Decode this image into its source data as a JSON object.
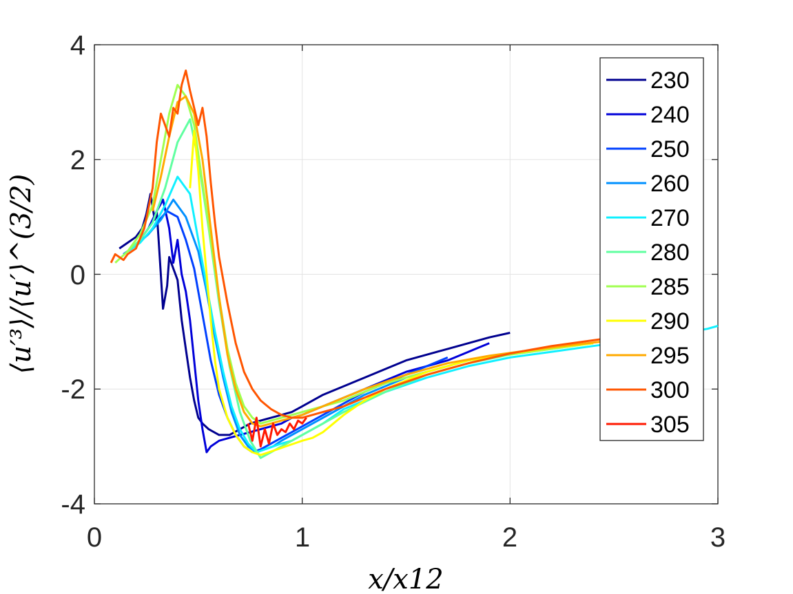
{
  "chart_data": {
    "type": "line",
    "title": "",
    "xlabel": "x/x12",
    "ylabel": "⟨u′³⟩/⟨u′⟩^(3/2)",
    "xlim": [
      0,
      3
    ],
    "ylim": [
      -4,
      4
    ],
    "grid": true,
    "legend_position": "top-right",
    "x_ticks": [
      "0",
      "1",
      "2",
      "3"
    ],
    "y_ticks": [
      "4",
      "2",
      "0",
      "-2",
      "-4"
    ],
    "series": [
      {
        "name": "230",
        "color": "#00008f",
        "x": [
          0.12,
          0.16,
          0.2,
          0.23,
          0.25,
          0.27,
          0.29,
          0.3,
          0.31,
          0.33,
          0.35,
          0.36,
          0.38,
          0.4,
          0.42,
          0.44,
          0.46,
          0.48,
          0.5,
          0.52,
          0.55,
          0.6,
          0.65,
          0.7,
          0.75,
          0.8,
          0.85,
          0.9,
          0.95,
          1.0,
          1.1,
          1.2,
          1.3,
          1.4,
          1.5,
          1.6,
          1.7,
          1.8,
          1.9,
          2.0
        ],
        "y": [
          0.45,
          0.55,
          0.65,
          0.8,
          1.05,
          1.4,
          0.95,
          1.1,
          0.55,
          -0.6,
          -0.2,
          0.3,
          0.1,
          -0.1,
          -0.8,
          -1.3,
          -1.8,
          -2.2,
          -2.5,
          -2.6,
          -2.7,
          -2.8,
          -2.8,
          -2.7,
          -2.6,
          -2.55,
          -2.5,
          -2.45,
          -2.4,
          -2.3,
          -2.1,
          -1.95,
          -1.8,
          -1.65,
          -1.5,
          -1.4,
          -1.3,
          -1.2,
          -1.1,
          -1.02
        ]
      },
      {
        "name": "240",
        "color": "#0000d9",
        "x": [
          0.14,
          0.18,
          0.22,
          0.26,
          0.3,
          0.33,
          0.36,
          0.38,
          0.4,
          0.42,
          0.44,
          0.46,
          0.48,
          0.5,
          0.52,
          0.54,
          0.56,
          0.6,
          0.65,
          0.7,
          0.75,
          0.8,
          0.85,
          0.9,
          0.95,
          1.0,
          1.1,
          1.2,
          1.3,
          1.4,
          1.5,
          1.6,
          1.7,
          1.8,
          1.9
        ],
        "y": [
          0.35,
          0.45,
          0.6,
          0.8,
          1.1,
          1.3,
          0.8,
          0.2,
          0.6,
          0.0,
          -0.3,
          -0.8,
          -1.5,
          -2.2,
          -2.7,
          -3.1,
          -3.0,
          -2.9,
          -2.85,
          -2.8,
          -2.75,
          -2.7,
          -2.65,
          -2.6,
          -2.5,
          -2.45,
          -2.3,
          -2.15,
          -2.0,
          -1.85,
          -1.7,
          -1.6,
          -1.5,
          -1.35,
          -1.2
        ]
      },
      {
        "name": "250",
        "color": "#0040ff",
        "x": [
          0.14,
          0.2,
          0.26,
          0.3,
          0.35,
          0.4,
          0.44,
          0.48,
          0.5,
          0.53,
          0.56,
          0.6,
          0.64,
          0.68,
          0.72,
          0.76,
          0.8,
          0.85,
          0.9,
          0.95,
          1.0,
          1.1,
          1.2,
          1.3,
          1.4,
          1.5,
          1.6,
          1.7
        ],
        "y": [
          0.35,
          0.5,
          0.7,
          0.9,
          1.1,
          1.0,
          0.6,
          0.1,
          -0.3,
          -0.9,
          -1.5,
          -2.1,
          -2.5,
          -2.8,
          -3.0,
          -3.1,
          -3.05,
          -2.95,
          -2.85,
          -2.75,
          -2.65,
          -2.45,
          -2.25,
          -2.05,
          -1.9,
          -1.75,
          -1.6,
          -1.45
        ]
      },
      {
        "name": "260",
        "color": "#0090ff",
        "x": [
          0.14,
          0.2,
          0.26,
          0.32,
          0.38,
          0.44,
          0.5,
          0.54,
          0.58,
          0.62,
          0.66,
          0.7,
          0.74,
          0.78,
          0.82,
          0.86,
          0.9,
          0.95,
          1.0,
          1.1,
          1.2,
          1.3,
          1.4,
          1.5,
          1.6,
          1.7,
          1.8,
          1.9,
          2.0
        ],
        "y": [
          0.35,
          0.5,
          0.7,
          0.95,
          1.3,
          1.0,
          0.4,
          -0.3,
          -1.1,
          -1.8,
          -2.4,
          -2.8,
          -3.0,
          -3.1,
          -3.05,
          -3.0,
          -2.9,
          -2.8,
          -2.7,
          -2.5,
          -2.3,
          -2.1,
          -1.95,
          -1.8,
          -1.7,
          -1.6,
          -1.5,
          -1.45,
          -1.4
        ]
      },
      {
        "name": "270",
        "color": "#10f0ff",
        "x": [
          0.16,
          0.22,
          0.28,
          0.34,
          0.4,
          0.46,
          0.5,
          0.54,
          0.58,
          0.62,
          0.66,
          0.7,
          0.74,
          0.78,
          0.82,
          0.86,
          0.9,
          0.95,
          1.0,
          1.1,
          1.2,
          1.4,
          1.6,
          1.8,
          2.0,
          2.2,
          2.4,
          2.6,
          2.8,
          2.95,
          3.0
        ],
        "y": [
          0.4,
          0.55,
          0.8,
          1.2,
          1.7,
          1.4,
          0.6,
          -0.2,
          -1.0,
          -1.7,
          -2.3,
          -2.7,
          -2.95,
          -3.1,
          -3.05,
          -3.0,
          -2.95,
          -2.9,
          -2.8,
          -2.6,
          -2.35,
          -2.05,
          -1.8,
          -1.6,
          -1.45,
          -1.35,
          -1.25,
          -1.15,
          -1.05,
          -0.95,
          -0.9
        ]
      },
      {
        "name": "280",
        "color": "#60ffa0",
        "x": [
          0.16,
          0.22,
          0.28,
          0.34,
          0.4,
          0.46,
          0.5,
          0.55,
          0.6,
          0.65,
          0.7,
          0.75,
          0.8,
          0.85,
          0.9,
          0.95,
          1.0,
          1.1,
          1.2,
          1.4,
          1.6,
          1.8,
          2.0,
          2.2,
          2.4
        ],
        "y": [
          0.4,
          0.6,
          0.9,
          1.5,
          2.3,
          2.7,
          2.0,
          0.8,
          -0.5,
          -1.6,
          -2.4,
          -2.9,
          -3.2,
          -3.1,
          -3.0,
          -2.9,
          -2.8,
          -2.6,
          -2.4,
          -2.05,
          -1.75,
          -1.55,
          -1.4,
          -1.3,
          -1.2
        ]
      },
      {
        "name": "285",
        "color": "#a0ff50",
        "x": [
          0.1,
          0.16,
          0.22,
          0.28,
          0.32,
          0.36,
          0.4,
          0.44,
          0.48,
          0.52,
          0.56,
          0.6,
          0.64,
          0.68,
          0.72,
          0.76,
          0.8,
          0.85,
          0.9,
          0.95,
          1.0,
          1.1,
          1.2,
          1.4,
          1.6,
          1.8,
          2.0,
          2.2,
          2.4
        ],
        "y": [
          0.2,
          0.4,
          0.7,
          1.2,
          2.0,
          2.8,
          3.3,
          3.1,
          2.6,
          1.6,
          0.6,
          -0.4,
          -1.3,
          -1.9,
          -2.3,
          -2.5,
          -2.6,
          -2.55,
          -2.5,
          -2.45,
          -2.4,
          -2.3,
          -2.2,
          -1.9,
          -1.7,
          -1.5,
          -1.4,
          -1.3,
          -1.2
        ]
      },
      {
        "name": "290",
        "color": "#ffff00",
        "x": [
          0.46,
          0.48,
          0.5,
          0.52,
          0.54,
          0.56,
          0.58,
          0.6,
          0.64,
          0.68,
          0.72,
          0.76,
          0.8,
          0.84,
          0.88,
          0.92,
          0.96,
          1.0,
          1.05,
          1.1,
          1.2,
          1.3,
          1.4,
          1.5,
          1.6,
          1.7,
          1.8,
          2.0,
          2.2,
          2.4
        ],
        "y": [
          1.5,
          2.5,
          1.8,
          0.8,
          0.0,
          -0.8,
          -1.5,
          -2.0,
          -2.5,
          -2.8,
          -3.0,
          -3.1,
          -3.15,
          -3.1,
          -3.05,
          -3.0,
          -2.95,
          -2.9,
          -2.85,
          -2.75,
          -2.45,
          -2.2,
          -2.0,
          -1.85,
          -1.7,
          -1.6,
          -1.5,
          -1.38,
          -1.28,
          -1.2
        ]
      },
      {
        "name": "295",
        "color": "#ffaa00",
        "x": [
          0.28,
          0.32,
          0.36,
          0.4,
          0.44,
          0.48,
          0.52,
          0.56,
          0.6,
          0.64,
          0.68,
          0.72,
          0.76,
          0.8,
          0.85,
          0.9,
          0.95,
          1.0,
          1.1,
          1.2,
          1.3,
          1.5,
          1.7,
          1.9,
          2.1,
          2.3,
          2.5
        ],
        "y": [
          1.1,
          1.7,
          2.4,
          3.0,
          3.1,
          2.8,
          2.0,
          0.8,
          -0.4,
          -1.4,
          -2.0,
          -2.4,
          -2.6,
          -2.65,
          -2.6,
          -2.55,
          -2.5,
          -2.45,
          -2.3,
          -2.15,
          -2.0,
          -1.75,
          -1.55,
          -1.42,
          -1.32,
          -1.23,
          -1.15
        ]
      },
      {
        "name": "300",
        "color": "#ff5500",
        "x": [
          0.08,
          0.1,
          0.12,
          0.14,
          0.16,
          0.2,
          0.24,
          0.28,
          0.3,
          0.32,
          0.34,
          0.36,
          0.38,
          0.4,
          0.42,
          0.44,
          0.46,
          0.48,
          0.5,
          0.52,
          0.54,
          0.56,
          0.58,
          0.6,
          0.64,
          0.68,
          0.72,
          0.76,
          0.8,
          0.85,
          0.9,
          0.95,
          1.0,
          1.1,
          1.2,
          1.3,
          1.4,
          1.6,
          1.8,
          2.0,
          2.2,
          2.4,
          2.6
        ],
        "y": [
          0.2,
          0.35,
          0.3,
          0.25,
          0.35,
          0.45,
          0.8,
          1.5,
          2.3,
          2.8,
          2.6,
          2.4,
          2.9,
          2.8,
          3.3,
          3.55,
          3.2,
          2.9,
          2.6,
          2.9,
          2.4,
          1.6,
          0.9,
          0.3,
          -0.5,
          -1.2,
          -1.7,
          -2.0,
          -2.2,
          -2.35,
          -2.45,
          -2.5,
          -2.5,
          -2.4,
          -2.3,
          -2.15,
          -2.0,
          -1.75,
          -1.55,
          -1.38,
          -1.25,
          -1.15,
          -1.05
        ]
      },
      {
        "name": "305",
        "color": "#ff1800",
        "x": [
          0.74,
          0.76,
          0.78,
          0.8,
          0.82,
          0.84,
          0.86,
          0.88,
          0.9,
          0.92,
          0.94,
          0.96,
          0.98,
          1.0,
          1.02
        ],
        "y": [
          -2.6,
          -2.9,
          -2.5,
          -3.0,
          -2.7,
          -2.95,
          -2.6,
          -2.8,
          -2.7,
          -2.75,
          -2.6,
          -2.7,
          -2.55,
          -2.6,
          -2.5
        ]
      }
    ]
  }
}
